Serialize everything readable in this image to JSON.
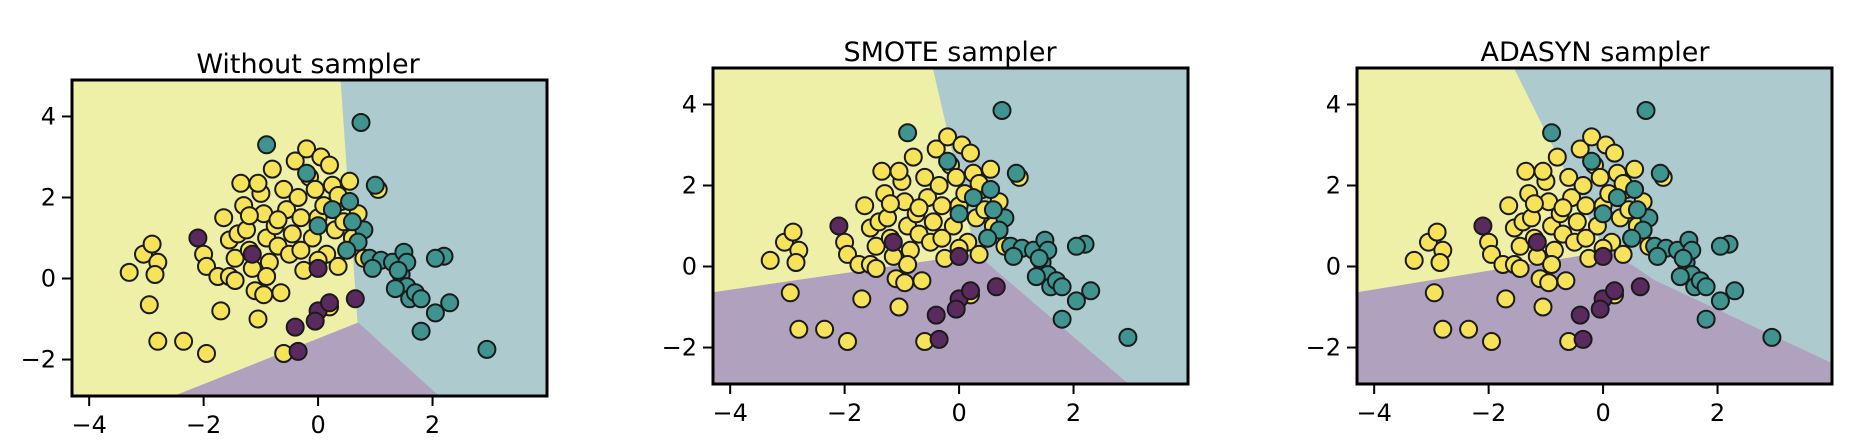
{
  "colors": {
    "yellow_region": "#eef0a7",
    "teal_region": "#adcbcf",
    "purple_region": "#b0a2bf",
    "yellow_point": "#f6e35a",
    "teal_point": "#3f9490",
    "purple_point": "#5a2a5e",
    "edge": "#1a1a1a"
  },
  "chart_data": [
    {
      "type": "scatter",
      "title": "Without sampler",
      "xlim": [
        -4.3,
        4.0
      ],
      "ylim": [
        -2.9,
        4.9
      ],
      "xticks": [
        -4,
        -2,
        0,
        2
      ],
      "yticks": [
        -2,
        0,
        2,
        4
      ],
      "xticklabels": [
        "−4",
        "−2",
        "0",
        "2"
      ],
      "yticklabels": [
        "−2",
        "0",
        "2",
        "4"
      ],
      "regions": [
        {
          "class": "yellow",
          "polygon": [
            [
              -4.3,
              -2.9
            ],
            [
              -4.3,
              4.9
            ],
            [
              0.4,
              4.9
            ],
            [
              0.7,
              -1.1
            ],
            [
              -2.5,
              -2.9
            ]
          ]
        },
        {
          "class": "teal",
          "polygon": [
            [
              0.4,
              4.9
            ],
            [
              4.0,
              4.9
            ],
            [
              4.0,
              -2.9
            ],
            [
              2.1,
              -2.9
            ],
            [
              0.7,
              -1.1
            ]
          ]
        },
        {
          "class": "purple",
          "polygon": [
            [
              -2.5,
              -2.9
            ],
            [
              0.7,
              -1.1
            ],
            [
              2.1,
              -2.9
            ]
          ]
        }
      ]
    },
    {
      "type": "scatter",
      "title": "SMOTE sampler",
      "xlim": [
        -4.3,
        4.0
      ],
      "ylim": [
        -2.9,
        4.9
      ],
      "xticks": [
        -4,
        -2,
        0,
        2
      ],
      "yticks": [
        -2,
        0,
        2,
        4
      ],
      "xticklabels": [
        "−4",
        "−2",
        "0",
        "2"
      ],
      "yticklabels": [
        "−2",
        "0",
        "2",
        "4"
      ],
      "regions": [
        {
          "class": "yellow",
          "polygon": [
            [
              -4.3,
              -0.65
            ],
            [
              -4.3,
              4.9
            ],
            [
              -0.45,
              4.9
            ],
            [
              0.3,
              0.3
            ]
          ]
        },
        {
          "class": "teal",
          "polygon": [
            [
              -0.45,
              4.9
            ],
            [
              4.0,
              4.9
            ],
            [
              4.0,
              -2.9
            ],
            [
              2.95,
              -2.9
            ],
            [
              0.3,
              0.3
            ]
          ]
        },
        {
          "class": "purple",
          "polygon": [
            [
              -4.3,
              -0.65
            ],
            [
              0.3,
              0.3
            ],
            [
              2.95,
              -2.9
            ],
            [
              -4.3,
              -2.9
            ]
          ]
        }
      ]
    },
    {
      "type": "scatter",
      "title": "ADASYN sampler",
      "xlim": [
        -4.3,
        4.0
      ],
      "ylim": [
        -2.9,
        4.9
      ],
      "xticks": [
        -4,
        -2,
        0,
        2
      ],
      "yticks": [
        -2,
        0,
        2,
        4
      ],
      "xticklabels": [
        "−4",
        "−2",
        "0",
        "2"
      ],
      "yticklabels": [
        "−2",
        "0",
        "2",
        "4"
      ],
      "regions": [
        {
          "class": "yellow",
          "polygon": [
            [
              -4.3,
              -0.65
            ],
            [
              -4.3,
              4.9
            ],
            [
              -1.55,
              4.9
            ],
            [
              0.0,
              0.5
            ],
            [
              -0.2,
              0.3
            ]
          ]
        },
        {
          "class": "teal",
          "polygon": [
            [
              -1.55,
              4.9
            ],
            [
              4.0,
              4.9
            ],
            [
              4.0,
              -2.4
            ],
            [
              0.9,
              -0.35
            ],
            [
              0.0,
              0.5
            ]
          ]
        },
        {
          "class": "purple",
          "polygon": [
            [
              -4.3,
              -0.65
            ],
            [
              -0.2,
              0.3
            ],
            [
              0.0,
              0.5
            ],
            [
              0.9,
              -0.35
            ],
            [
              4.0,
              -2.4
            ],
            [
              4.0,
              -2.9
            ],
            [
              -4.3,
              -2.9
            ]
          ]
        }
      ]
    }
  ],
  "points": {
    "yellow": [
      [
        -3.3,
        0.15
      ],
      [
        -3.05,
        0.6
      ],
      [
        -2.9,
        0.85
      ],
      [
        -2.8,
        0.4
      ],
      [
        -2.85,
        0.1
      ],
      [
        -2.95,
        -0.65
      ],
      [
        -2.8,
        -1.55
      ],
      [
        -2.35,
        -1.55
      ],
      [
        -1.95,
        -1.85
      ],
      [
        -2.0,
        0.6
      ],
      [
        -1.95,
        0.3
      ],
      [
        -1.75,
        0.05
      ],
      [
        -1.7,
        -0.8
      ],
      [
        -1.65,
        1.5
      ],
      [
        -1.55,
        0.95
      ],
      [
        -1.45,
        0.5
      ],
      [
        -1.4,
        1.1
      ],
      [
        -1.35,
        2.35
      ],
      [
        -1.3,
        1.8
      ],
      [
        -1.25,
        1.2
      ],
      [
        -1.2,
        0.7
      ],
      [
        -1.15,
        0.25
      ],
      [
        -1.1,
        -0.3
      ],
      [
        -1.05,
        -1.0
      ],
      [
        -1.0,
        2.1
      ],
      [
        -0.95,
        1.6
      ],
      [
        -0.9,
        1.0
      ],
      [
        -0.85,
        0.4
      ],
      [
        -0.8,
        2.7
      ],
      [
        -0.75,
        1.3
      ],
      [
        -0.7,
        0.8
      ],
      [
        -0.65,
        -0.35
      ],
      [
        -0.6,
        2.2
      ],
      [
        -0.55,
        1.7
      ],
      [
        -0.5,
        0.6
      ],
      [
        -0.45,
        1.1
      ],
      [
        -0.4,
        2.9
      ],
      [
        -0.35,
        2.0
      ],
      [
        -0.3,
        1.5
      ],
      [
        -0.25,
        0.2
      ],
      [
        -0.2,
        3.2
      ],
      [
        -0.15,
        2.5
      ],
      [
        -0.1,
        1.0
      ],
      [
        -0.05,
        2.2
      ],
      [
        0.0,
        1.5
      ],
      [
        0.05,
        3.0
      ],
      [
        0.1,
        1.8
      ],
      [
        0.15,
        0.6
      ],
      [
        0.2,
        2.8
      ],
      [
        0.25,
        2.3
      ],
      [
        0.3,
        1.2
      ],
      [
        0.35,
        0.3
      ],
      [
        0.4,
        1.9
      ],
      [
        0.45,
        1.4
      ],
      [
        0.5,
        0.7
      ],
      [
        0.55,
        2.4
      ],
      [
        0.6,
        1.0
      ],
      [
        0.7,
        1.6
      ],
      [
        0.8,
        0.5
      ],
      [
        1.05,
        2.2
      ],
      [
        -0.6,
        -1.85
      ],
      [
        -1.55,
        0.05
      ],
      [
        -0.95,
        -0.4
      ],
      [
        -1.45,
        -0.05
      ],
      [
        0.2,
        -0.7
      ],
      [
        -0.9,
        0.05
      ],
      [
        -0.3,
        0.7
      ],
      [
        0.0,
        0.45
      ],
      [
        -1.2,
        1.55
      ],
      [
        -0.7,
        1.45
      ],
      [
        0.35,
        2.05
      ],
      [
        -1.05,
        2.35
      ]
    ],
    "teal": [
      [
        -0.9,
        3.3
      ],
      [
        0.75,
        3.85
      ],
      [
        1.0,
        2.3
      ],
      [
        0.8,
        1.2
      ],
      [
        0.7,
        0.9
      ],
      [
        0.9,
        0.5
      ],
      [
        1.1,
        0.45
      ],
      [
        1.3,
        0.4
      ],
      [
        1.5,
        0.65
      ],
      [
        1.45,
        0.1
      ],
      [
        1.55,
        -0.2
      ],
      [
        1.6,
        -0.5
      ],
      [
        1.8,
        -1.3
      ],
      [
        2.05,
        -0.85
      ],
      [
        2.2,
        0.55
      ],
      [
        2.05,
        0.5
      ],
      [
        2.3,
        -0.6
      ],
      [
        2.95,
        -1.75
      ],
      [
        1.55,
        0.4
      ],
      [
        1.7,
        -0.35
      ],
      [
        0.5,
        0.7
      ],
      [
        0.55,
        1.9
      ],
      [
        0.25,
        1.7
      ],
      [
        -0.2,
        2.6
      ],
      [
        0.0,
        1.3
      ],
      [
        0.95,
        0.25
      ],
      [
        1.8,
        -0.5
      ],
      [
        1.35,
        -0.25
      ],
      [
        0.6,
        1.4
      ],
      [
        1.4,
        0.2
      ]
    ],
    "purple": [
      [
        -2.1,
        1.0
      ],
      [
        -1.15,
        0.6
      ],
      [
        0.0,
        0.25
      ],
      [
        -0.4,
        -1.2
      ],
      [
        0.0,
        -0.8
      ],
      [
        -0.05,
        -1.05
      ],
      [
        0.2,
        -0.6
      ],
      [
        0.65,
        -0.5
      ],
      [
        -0.35,
        -1.8
      ]
    ]
  }
}
